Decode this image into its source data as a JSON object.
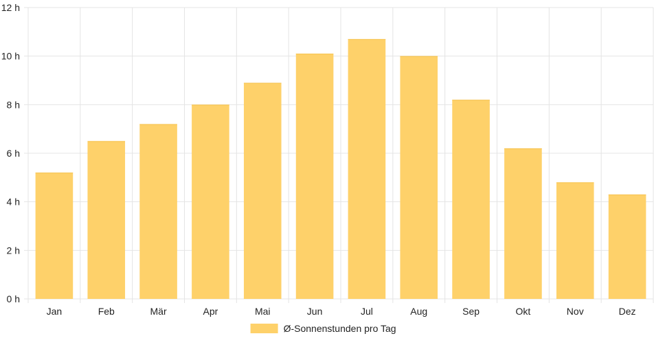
{
  "chart_data": {
    "type": "bar",
    "categories": [
      "Jan",
      "Feb",
      "Mär",
      "Apr",
      "Mai",
      "Jun",
      "Jul",
      "Aug",
      "Sep",
      "Okt",
      "Nov",
      "Dez"
    ],
    "series": [
      {
        "name": "Ø-Sonnenstunden pro Tag",
        "values": [
          5.2,
          6.5,
          7.2,
          8.0,
          8.9,
          10.1,
          10.7,
          10.0,
          8.2,
          6.2,
          4.8,
          4.3
        ],
        "color": "#fed16a"
      }
    ],
    "yticks": [
      "0 h",
      "2 h",
      "4 h",
      "6 h",
      "8 h",
      "10 h",
      "12 h"
    ],
    "ylim": [
      0,
      12
    ],
    "grid": true,
    "legend_position": "bottom",
    "xlabel": "",
    "ylabel": "",
    "title": ""
  }
}
